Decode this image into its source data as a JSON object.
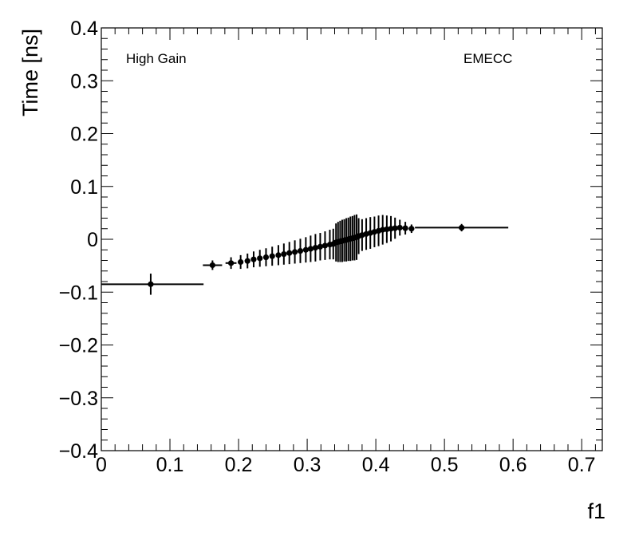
{
  "chart_data": {
    "type": "scatter",
    "title": "",
    "xlabel": "f1",
    "ylabel": "Time [ns]",
    "xlim": [
      0,
      0.73
    ],
    "ylim": [
      -0.4,
      0.4
    ],
    "x_ticks": [
      {
        "value": 0,
        "label": "0"
      },
      {
        "value": 0.1,
        "label": "0.1"
      },
      {
        "value": 0.2,
        "label": "0.2"
      },
      {
        "value": 0.3,
        "label": "0.3"
      },
      {
        "value": 0.4,
        "label": "0.4"
      },
      {
        "value": 0.5,
        "label": "0.5"
      },
      {
        "value": 0.6,
        "label": "0.6"
      },
      {
        "value": 0.7,
        "label": "0.7"
      }
    ],
    "y_ticks": [
      {
        "value": 0.4,
        "label": "0.4"
      },
      {
        "value": 0.3,
        "label": "0.3"
      },
      {
        "value": 0.2,
        "label": "0.2"
      },
      {
        "value": 0.1,
        "label": "0.1"
      },
      {
        "value": 0,
        "label": "0"
      },
      {
        "value": -0.1,
        "label": "−0.1"
      },
      {
        "value": -0.2,
        "label": "−0.2"
      },
      {
        "value": -0.3,
        "label": "−0.3"
      },
      {
        "value": -0.4,
        "label": "−0.4"
      }
    ],
    "annotations": [
      "High Gain",
      "EMECC"
    ],
    "grid": false,
    "series": [
      {
        "points": [
          {
            "x": 0.072,
            "y": -0.085,
            "xlo": 0.0,
            "xhi": 0.149,
            "ey": 0.02
          },
          {
            "x": 0.162,
            "y": -0.049,
            "xlo": 0.148,
            "xhi": 0.176,
            "ey": 0.009
          },
          {
            "x": 0.189,
            "y": -0.045,
            "xlo": 0.181,
            "xhi": 0.197,
            "ey": 0.011
          },
          {
            "x": 0.203,
            "y": -0.043,
            "xlo": 0.199,
            "xhi": 0.207,
            "ey": 0.013
          },
          {
            "x": 0.213,
            "y": -0.041,
            "xlo": 0.209,
            "xhi": 0.217,
            "ey": 0.014
          },
          {
            "x": 0.222,
            "y": -0.038,
            "xlo": 0.219,
            "xhi": 0.225,
            "ey": 0.015
          },
          {
            "x": 0.231,
            "y": -0.036,
            "xlo": 0.228,
            "xhi": 0.234,
            "ey": 0.016
          },
          {
            "x": 0.24,
            "y": -0.034,
            "xlo": 0.237,
            "xhi": 0.243,
            "ey": 0.017
          },
          {
            "x": 0.249,
            "y": -0.032,
            "xlo": 0.246,
            "xhi": 0.252,
            "ey": 0.018
          },
          {
            "x": 0.258,
            "y": -0.03,
            "xlo": 0.255,
            "xhi": 0.261,
            "ey": 0.019
          },
          {
            "x": 0.266,
            "y": -0.028,
            "xlo": 0.263,
            "xhi": 0.269,
            "ey": 0.02
          },
          {
            "x": 0.274,
            "y": -0.026,
            "xlo": 0.271,
            "xhi": 0.277,
            "ey": 0.021
          },
          {
            "x": 0.282,
            "y": -0.024,
            "xlo": 0.279,
            "xhi": 0.285,
            "ey": 0.022
          },
          {
            "x": 0.29,
            "y": -0.022,
            "xlo": 0.287,
            "xhi": 0.293,
            "ey": 0.023
          },
          {
            "x": 0.298,
            "y": -0.02,
            "xlo": 0.295,
            "xhi": 0.301,
            "ey": 0.024
          },
          {
            "x": 0.305,
            "y": -0.018,
            "xlo": 0.302,
            "xhi": 0.308,
            "ey": 0.025
          },
          {
            "x": 0.312,
            "y": -0.016,
            "xlo": 0.309,
            "xhi": 0.315,
            "ey": 0.026
          },
          {
            "x": 0.319,
            "y": -0.014,
            "xlo": 0.316,
            "xhi": 0.322,
            "ey": 0.026
          },
          {
            "x": 0.326,
            "y": -0.012,
            "xlo": 0.323,
            "xhi": 0.329,
            "ey": 0.027
          },
          {
            "x": 0.333,
            "y": -0.01,
            "xlo": 0.33,
            "xhi": 0.336,
            "ey": 0.028
          },
          {
            "x": 0.338,
            "y": -0.009,
            "xlo": 0.336,
            "xhi": 0.34,
            "ey": 0.029
          },
          {
            "x": 0.342,
            "y": -0.006,
            "xlo": 0.34,
            "xhi": 0.344,
            "ey": 0.036
          },
          {
            "x": 0.345,
            "y": -0.005,
            "xlo": 0.343,
            "xhi": 0.347,
            "ey": 0.038
          },
          {
            "x": 0.348,
            "y": -0.004,
            "xlo": 0.346,
            "xhi": 0.35,
            "ey": 0.039
          },
          {
            "x": 0.351,
            "y": -0.003,
            "xlo": 0.349,
            "xhi": 0.353,
            "ey": 0.04
          },
          {
            "x": 0.354,
            "y": -0.002,
            "xlo": 0.352,
            "xhi": 0.356,
            "ey": 0.04
          },
          {
            "x": 0.357,
            "y": -0.001,
            "xlo": 0.355,
            "xhi": 0.359,
            "ey": 0.041
          },
          {
            "x": 0.36,
            "y": 0.0,
            "xlo": 0.358,
            "xhi": 0.362,
            "ey": 0.041
          },
          {
            "x": 0.363,
            "y": 0.001,
            "xlo": 0.361,
            "xhi": 0.365,
            "ey": 0.042
          },
          {
            "x": 0.366,
            "y": 0.002,
            "xlo": 0.364,
            "xhi": 0.368,
            "ey": 0.042
          },
          {
            "x": 0.369,
            "y": 0.003,
            "xlo": 0.367,
            "xhi": 0.371,
            "ey": 0.043
          },
          {
            "x": 0.372,
            "y": 0.004,
            "xlo": 0.37,
            "xhi": 0.374,
            "ey": 0.043
          },
          {
            "x": 0.375,
            "y": 0.006,
            "xlo": 0.373,
            "xhi": 0.377,
            "ey": 0.034
          },
          {
            "x": 0.38,
            "y": 0.008,
            "xlo": 0.377,
            "xhi": 0.383,
            "ey": 0.03
          },
          {
            "x": 0.386,
            "y": 0.01,
            "xlo": 0.383,
            "xhi": 0.389,
            "ey": 0.03
          },
          {
            "x": 0.392,
            "y": 0.012,
            "xlo": 0.389,
            "xhi": 0.395,
            "ey": 0.03
          },
          {
            "x": 0.398,
            "y": 0.014,
            "xlo": 0.395,
            "xhi": 0.401,
            "ey": 0.029
          },
          {
            "x": 0.404,
            "y": 0.016,
            "xlo": 0.401,
            "xhi": 0.407,
            "ey": 0.029
          },
          {
            "x": 0.41,
            "y": 0.018,
            "xlo": 0.407,
            "xhi": 0.413,
            "ey": 0.028
          },
          {
            "x": 0.416,
            "y": 0.019,
            "xlo": 0.413,
            "xhi": 0.419,
            "ey": 0.026
          },
          {
            "x": 0.422,
            "y": 0.02,
            "xlo": 0.419,
            "xhi": 0.425,
            "ey": 0.024
          },
          {
            "x": 0.428,
            "y": 0.021,
            "xlo": 0.425,
            "xhi": 0.431,
            "ey": 0.02
          },
          {
            "x": 0.435,
            "y": 0.022,
            "xlo": 0.432,
            "xhi": 0.438,
            "ey": 0.015
          },
          {
            "x": 0.443,
            "y": 0.021,
            "xlo": 0.439,
            "xhi": 0.447,
            "ey": 0.012
          },
          {
            "x": 0.452,
            "y": 0.02,
            "xlo": 0.448,
            "xhi": 0.456,
            "ey": 0.008
          },
          {
            "x": 0.525,
            "y": 0.022,
            "xlo": 0.457,
            "xhi": 0.593,
            "ey": 0.007
          }
        ]
      }
    ]
  }
}
